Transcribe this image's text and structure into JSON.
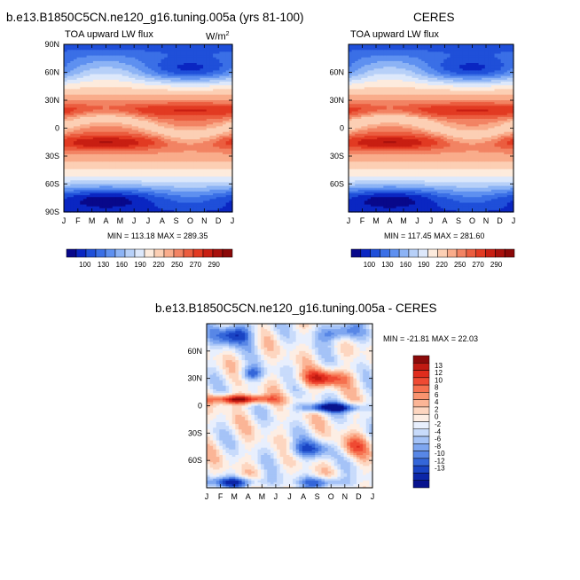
{
  "chart_data": [
    {
      "type": "heatmap",
      "title": "b.e13.B1850C5CN.ne120_g16.tuning.005a (yrs 81-100)",
      "subtitle": "TOA upward LW flux",
      "units_prefix": "W/m",
      "units_exp": "2",
      "x_ticks": [
        "J",
        "F",
        "M",
        "A",
        "M",
        "J",
        "J",
        "A",
        "S",
        "O",
        "N",
        "D",
        "J"
      ],
      "y_ticks": [
        "90N",
        "60N",
        "30N",
        "0",
        "30S",
        "60S",
        "90S"
      ],
      "ylim": [
        -90,
        90
      ],
      "min": "113.18",
      "max": "289.35",
      "stats_label": "MIN = 113.18  MAX = 289.35"
    },
    {
      "type": "heatmap",
      "title": "CERES",
      "subtitle": "TOA upward LW flux",
      "x_ticks": [
        "J",
        "F",
        "M",
        "A",
        "M",
        "J",
        "J",
        "A",
        "S",
        "O",
        "N",
        "D",
        "J"
      ],
      "y_ticks": [
        "60N",
        "30N",
        "0",
        "30S",
        "60S"
      ],
      "ylim": [
        -90,
        90
      ],
      "min": "117.45",
      "max": "281.60",
      "stats_label": "MIN = 117.45  MAX = 281.60"
    },
    {
      "type": "heatmap",
      "title": "b.e13.B1850C5CN.ne120_g16.tuning.005a - CERES",
      "x_ticks": [
        "J",
        "F",
        "M",
        "A",
        "M",
        "J",
        "J",
        "A",
        "S",
        "O",
        "N",
        "D",
        "J"
      ],
      "y_ticks": [
        "60N",
        "30N",
        "0",
        "30S",
        "60S"
      ],
      "ylim": [
        -90,
        90
      ],
      "min": "-21.81",
      "max": "22.03",
      "stats_label": "MIN = -21.81  MAX =  22.03"
    }
  ],
  "colorbars": {
    "flux": {
      "labels": [
        "100",
        "130",
        "160",
        "190",
        "220",
        "250",
        "270",
        "290"
      ],
      "colors": [
        "#08088a",
        "#0a26c2",
        "#1f4fd9",
        "#3a6fe6",
        "#5e90f0",
        "#8cb3f5",
        "#b7d0f8",
        "#dde8fb",
        "#fdebdd",
        "#fccfb4",
        "#f9ac8b",
        "#f28363",
        "#eb5d3f",
        "#e23a22",
        "#c81e12",
        "#a8100c",
        "#8b0808"
      ]
    },
    "diff": {
      "labels": [
        "13",
        "12",
        "10",
        "8",
        "6",
        "4",
        "2",
        "0",
        "-2",
        "-4",
        "-6",
        "-8",
        "-10",
        "-12",
        "-13"
      ],
      "colors": [
        "#8b0a0a",
        "#c01a12",
        "#e02c1d",
        "#ef4a33",
        "#f6704f",
        "#f9936f",
        "#fbb596",
        "#fdd6c0",
        "#fdeee4",
        "#e8effd",
        "#c8dbfb",
        "#a5c3f7",
        "#7ea6f0",
        "#5887e6",
        "#3466d9",
        "#1a44c4",
        "#0c26a8",
        "#08138e"
      ]
    }
  }
}
